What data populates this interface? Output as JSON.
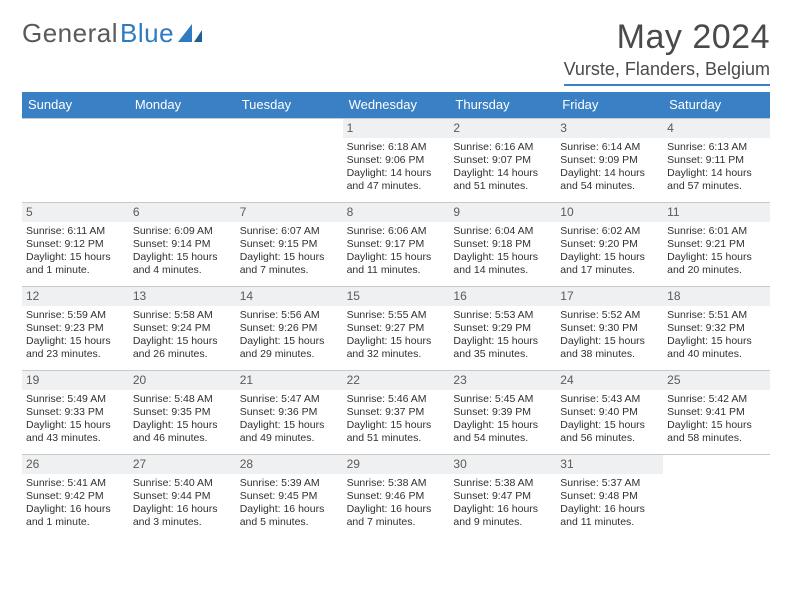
{
  "logo": {
    "word1": "General",
    "word2": "Blue"
  },
  "title": "May 2024",
  "location": "Vurste, Flanders, Belgium",
  "dow": [
    "Sunday",
    "Monday",
    "Tuesday",
    "Wednesday",
    "Thursday",
    "Friday",
    "Saturday"
  ],
  "colors": {
    "header_bar": "#3a80c4",
    "daynum_bg": "#eef0f2",
    "rule": "#c9c9c9",
    "text": "#303030"
  },
  "weeks": [
    [
      {
        "n": "",
        "sr": "",
        "ss": "",
        "dl": ""
      },
      {
        "n": "",
        "sr": "",
        "ss": "",
        "dl": ""
      },
      {
        "n": "",
        "sr": "",
        "ss": "",
        "dl": ""
      },
      {
        "n": "1",
        "sr": "Sunrise: 6:18 AM",
        "ss": "Sunset: 9:06 PM",
        "dl": "Daylight: 14 hours and 47 minutes."
      },
      {
        "n": "2",
        "sr": "Sunrise: 6:16 AM",
        "ss": "Sunset: 9:07 PM",
        "dl": "Daylight: 14 hours and 51 minutes."
      },
      {
        "n": "3",
        "sr": "Sunrise: 6:14 AM",
        "ss": "Sunset: 9:09 PM",
        "dl": "Daylight: 14 hours and 54 minutes."
      },
      {
        "n": "4",
        "sr": "Sunrise: 6:13 AM",
        "ss": "Sunset: 9:11 PM",
        "dl": "Daylight: 14 hours and 57 minutes."
      }
    ],
    [
      {
        "n": "5",
        "sr": "Sunrise: 6:11 AM",
        "ss": "Sunset: 9:12 PM",
        "dl": "Daylight: 15 hours and 1 minute."
      },
      {
        "n": "6",
        "sr": "Sunrise: 6:09 AM",
        "ss": "Sunset: 9:14 PM",
        "dl": "Daylight: 15 hours and 4 minutes."
      },
      {
        "n": "7",
        "sr": "Sunrise: 6:07 AM",
        "ss": "Sunset: 9:15 PM",
        "dl": "Daylight: 15 hours and 7 minutes."
      },
      {
        "n": "8",
        "sr": "Sunrise: 6:06 AM",
        "ss": "Sunset: 9:17 PM",
        "dl": "Daylight: 15 hours and 11 minutes."
      },
      {
        "n": "9",
        "sr": "Sunrise: 6:04 AM",
        "ss": "Sunset: 9:18 PM",
        "dl": "Daylight: 15 hours and 14 minutes."
      },
      {
        "n": "10",
        "sr": "Sunrise: 6:02 AM",
        "ss": "Sunset: 9:20 PM",
        "dl": "Daylight: 15 hours and 17 minutes."
      },
      {
        "n": "11",
        "sr": "Sunrise: 6:01 AM",
        "ss": "Sunset: 9:21 PM",
        "dl": "Daylight: 15 hours and 20 minutes."
      }
    ],
    [
      {
        "n": "12",
        "sr": "Sunrise: 5:59 AM",
        "ss": "Sunset: 9:23 PM",
        "dl": "Daylight: 15 hours and 23 minutes."
      },
      {
        "n": "13",
        "sr": "Sunrise: 5:58 AM",
        "ss": "Sunset: 9:24 PM",
        "dl": "Daylight: 15 hours and 26 minutes."
      },
      {
        "n": "14",
        "sr": "Sunrise: 5:56 AM",
        "ss": "Sunset: 9:26 PM",
        "dl": "Daylight: 15 hours and 29 minutes."
      },
      {
        "n": "15",
        "sr": "Sunrise: 5:55 AM",
        "ss": "Sunset: 9:27 PM",
        "dl": "Daylight: 15 hours and 32 minutes."
      },
      {
        "n": "16",
        "sr": "Sunrise: 5:53 AM",
        "ss": "Sunset: 9:29 PM",
        "dl": "Daylight: 15 hours and 35 minutes."
      },
      {
        "n": "17",
        "sr": "Sunrise: 5:52 AM",
        "ss": "Sunset: 9:30 PM",
        "dl": "Daylight: 15 hours and 38 minutes."
      },
      {
        "n": "18",
        "sr": "Sunrise: 5:51 AM",
        "ss": "Sunset: 9:32 PM",
        "dl": "Daylight: 15 hours and 40 minutes."
      }
    ],
    [
      {
        "n": "19",
        "sr": "Sunrise: 5:49 AM",
        "ss": "Sunset: 9:33 PM",
        "dl": "Daylight: 15 hours and 43 minutes."
      },
      {
        "n": "20",
        "sr": "Sunrise: 5:48 AM",
        "ss": "Sunset: 9:35 PM",
        "dl": "Daylight: 15 hours and 46 minutes."
      },
      {
        "n": "21",
        "sr": "Sunrise: 5:47 AM",
        "ss": "Sunset: 9:36 PM",
        "dl": "Daylight: 15 hours and 49 minutes."
      },
      {
        "n": "22",
        "sr": "Sunrise: 5:46 AM",
        "ss": "Sunset: 9:37 PM",
        "dl": "Daylight: 15 hours and 51 minutes."
      },
      {
        "n": "23",
        "sr": "Sunrise: 5:45 AM",
        "ss": "Sunset: 9:39 PM",
        "dl": "Daylight: 15 hours and 54 minutes."
      },
      {
        "n": "24",
        "sr": "Sunrise: 5:43 AM",
        "ss": "Sunset: 9:40 PM",
        "dl": "Daylight: 15 hours and 56 minutes."
      },
      {
        "n": "25",
        "sr": "Sunrise: 5:42 AM",
        "ss": "Sunset: 9:41 PM",
        "dl": "Daylight: 15 hours and 58 minutes."
      }
    ],
    [
      {
        "n": "26",
        "sr": "Sunrise: 5:41 AM",
        "ss": "Sunset: 9:42 PM",
        "dl": "Daylight: 16 hours and 1 minute."
      },
      {
        "n": "27",
        "sr": "Sunrise: 5:40 AM",
        "ss": "Sunset: 9:44 PM",
        "dl": "Daylight: 16 hours and 3 minutes."
      },
      {
        "n": "28",
        "sr": "Sunrise: 5:39 AM",
        "ss": "Sunset: 9:45 PM",
        "dl": "Daylight: 16 hours and 5 minutes."
      },
      {
        "n": "29",
        "sr": "Sunrise: 5:38 AM",
        "ss": "Sunset: 9:46 PM",
        "dl": "Daylight: 16 hours and 7 minutes."
      },
      {
        "n": "30",
        "sr": "Sunrise: 5:38 AM",
        "ss": "Sunset: 9:47 PM",
        "dl": "Daylight: 16 hours and 9 minutes."
      },
      {
        "n": "31",
        "sr": "Sunrise: 5:37 AM",
        "ss": "Sunset: 9:48 PM",
        "dl": "Daylight: 16 hours and 11 minutes."
      },
      {
        "n": "",
        "sr": "",
        "ss": "",
        "dl": ""
      }
    ]
  ]
}
